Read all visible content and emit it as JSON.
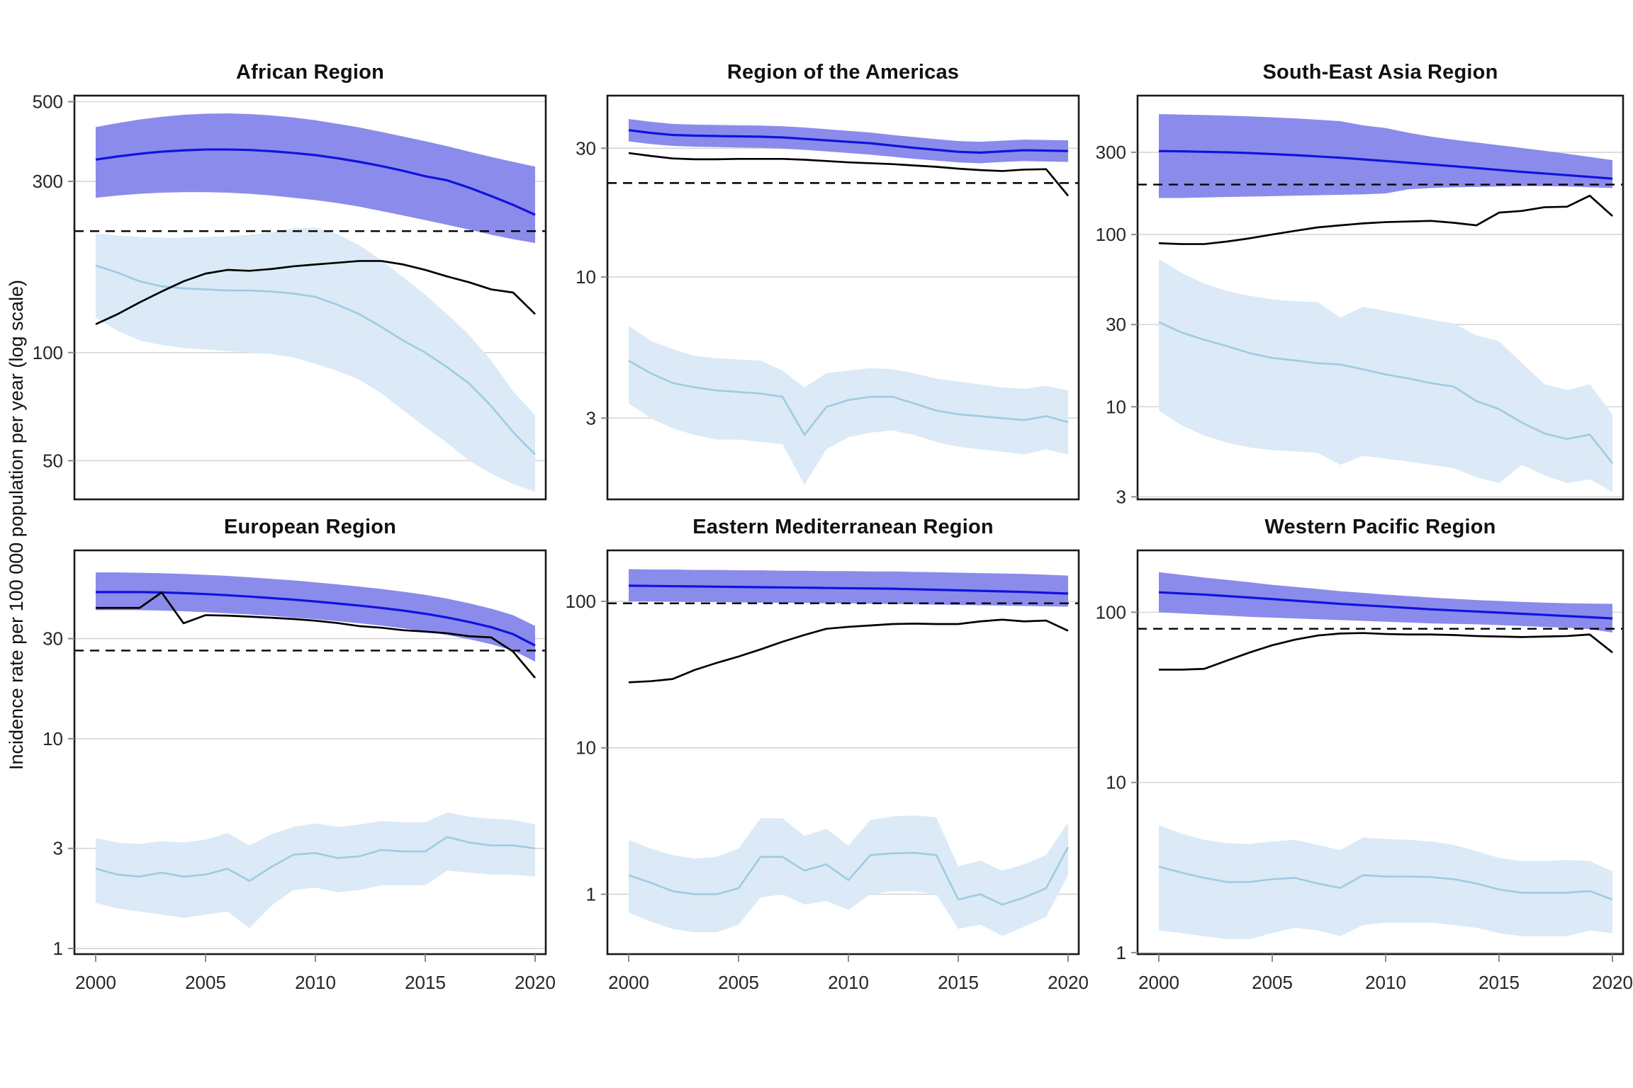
{
  "figure": {
    "ylabel": "Incidence rate per 100 000 population per year (log scale)"
  },
  "colors": {
    "blue_line": "#1212dd",
    "blue_band": "#8b8bec",
    "lightblue_line": "#9fcbe1",
    "lightblue_band": "#dbeaf6",
    "black_line": "#000000",
    "dashed_line": "#000000",
    "grid": "#d6d6d6",
    "frame": "#1a1a1a",
    "tick_text": "#262626",
    "tick_mark": "#8c8c8c"
  },
  "chart_meta": {
    "type": "line",
    "log_scale": true,
    "ylabel": "Incidence rate per 100 000 population per year (log scale)",
    "years": [
      2000,
      2001,
      2002,
      2003,
      2004,
      2005,
      2006,
      2007,
      2008,
      2009,
      2010,
      2011,
      2012,
      2013,
      2014,
      2015,
      2016,
      2017,
      2018,
      2019,
      2020
    ],
    "xticks": [
      2000,
      2005,
      2010,
      2015,
      2020
    ],
    "legend": "none",
    "grid": "horizontal-only",
    "facets": 6
  },
  "chart_data": [
    {
      "title": "African Region",
      "ylim": [
        39,
        520
      ],
      "yticks": [
        500,
        300,
        100,
        50
      ],
      "dashed_y": 218,
      "series": {
        "blue_line": [
          345,
          352,
          358,
          363,
          366,
          368,
          368,
          367,
          364,
          360,
          355,
          348,
          340,
          331,
          321,
          310,
          302,
          288,
          273,
          258,
          242
        ],
        "blue_band_upper": [
          425,
          436,
          446,
          454,
          460,
          463,
          464,
          462,
          458,
          452,
          444,
          434,
          424,
          412,
          400,
          388,
          376,
          363,
          351,
          340,
          330
        ],
        "blue_band_lower": [
          270,
          274,
          277,
          279,
          280,
          280,
          279,
          277,
          274,
          270,
          266,
          261,
          255,
          248,
          241,
          234,
          227,
          220,
          213,
          207,
          202
        ],
        "lightblue_line": [
          175,
          167,
          158,
          153,
          151,
          150,
          149,
          149,
          148,
          146,
          143,
          136,
          128,
          118,
          108,
          100,
          91,
          82,
          71,
          60,
          52
        ],
        "lightblue_band_upper": [
          215,
          212,
          210,
          209,
          209,
          210,
          211,
          213,
          216,
          222,
          223,
          214,
          199,
          181,
          162,
          145,
          128,
          112,
          95,
          78,
          67
        ],
        "lightblue_band_lower": [
          125,
          115,
          108,
          105,
          103,
          102,
          101,
          100,
          99,
          97,
          93,
          89,
          84,
          77,
          69,
          62,
          56,
          50,
          46,
          43,
          41
        ],
        "black_line": [
          120,
          128,
          138,
          148,
          158,
          166,
          170,
          169,
          171,
          174,
          176,
          178,
          180,
          180,
          176,
          170,
          163,
          157,
          150,
          147,
          128
        ]
      }
    },
    {
      "title": "Region of the Americas",
      "ylim": [
        1.5,
        47
      ],
      "yticks": [
        30,
        10,
        3
      ],
      "dashed_y": 22.3,
      "series": {
        "blue_line": [
          35,
          34.2,
          33.6,
          33.4,
          33.3,
          33.2,
          33.1,
          32.9,
          32.5,
          32.1,
          31.7,
          31.3,
          30.7,
          30.1,
          29.6,
          29.1,
          28.9,
          29.2,
          29.5,
          29.4,
          29.3
        ],
        "blue_band_upper": [
          38.5,
          37.6,
          36.9,
          36.7,
          36.6,
          36.5,
          36.4,
          36.2,
          35.8,
          35.3,
          34.8,
          34.3,
          33.6,
          33.0,
          32.4,
          31.9,
          31.7,
          32.0,
          32.3,
          32.2,
          32.1
        ],
        "blue_band_lower": [
          31.8,
          31.1,
          30.6,
          30.4,
          30.3,
          30.2,
          30.1,
          29.9,
          29.6,
          29.2,
          28.8,
          28.4,
          27.9,
          27.4,
          27.0,
          26.6,
          26.4,
          26.7,
          26.9,
          26.8,
          26.7
        ],
        "lightblue_line": [
          4.9,
          4.4,
          4.05,
          3.9,
          3.8,
          3.75,
          3.7,
          3.6,
          2.6,
          3.3,
          3.5,
          3.6,
          3.6,
          3.4,
          3.2,
          3.1,
          3.05,
          3.0,
          2.95,
          3.05,
          2.9
        ],
        "lightblue_band_upper": [
          6.6,
          5.8,
          5.4,
          5.1,
          5.0,
          4.95,
          4.9,
          4.5,
          3.9,
          4.4,
          4.5,
          4.6,
          4.55,
          4.4,
          4.2,
          4.1,
          4.0,
          3.9,
          3.85,
          3.95,
          3.8
        ],
        "lightblue_band_lower": [
          3.4,
          3.0,
          2.75,
          2.6,
          2.5,
          2.5,
          2.45,
          2.4,
          1.7,
          2.3,
          2.55,
          2.65,
          2.7,
          2.6,
          2.45,
          2.35,
          2.3,
          2.25,
          2.2,
          2.3,
          2.2
        ],
        "black_line": [
          28.8,
          28.1,
          27.5,
          27.3,
          27.3,
          27.4,
          27.4,
          27.4,
          27.2,
          26.9,
          26.6,
          26.4,
          26.2,
          25.9,
          25.6,
          25.2,
          24.9,
          24.7,
          25.0,
          25.1,
          20
        ]
      }
    },
    {
      "title": "South-East Asia Region",
      "ylim": [
        2.9,
        640
      ],
      "yticks": [
        300,
        100,
        30,
        10,
        3
      ],
      "dashed_y": 195,
      "series": {
        "blue_line": [
          305,
          304,
          302,
          300,
          297,
          293,
          289,
          284,
          279,
          273,
          267,
          261,
          255,
          249,
          243,
          237,
          231,
          226,
          221,
          216,
          211
        ],
        "blue_band_upper": [
          500,
          497,
          494,
          490,
          485,
          479,
          472,
          464,
          455,
          430,
          415,
          390,
          370,
          355,
          342,
          330,
          318,
          306,
          294,
          282,
          270
        ],
        "blue_band_lower": [
          163,
          163,
          164,
          165,
          166,
          167,
          168,
          169,
          170,
          171,
          173,
          183,
          186,
          188,
          189,
          190,
          191,
          191,
          190,
          188,
          186
        ],
        "lightblue_line": [
          31,
          27,
          24.5,
          22.5,
          20.5,
          19.2,
          18.6,
          17.9,
          17.6,
          16.5,
          15.4,
          14.6,
          13.7,
          13.1,
          10.8,
          9.7,
          8.1,
          7.0,
          6.5,
          6.9,
          4.7
        ],
        "lightblue_band_upper": [
          72,
          60,
          52,
          47,
          44,
          42,
          41,
          40.5,
          33,
          38,
          36,
          34,
          32,
          30.5,
          26,
          24,
          18,
          13.5,
          12.5,
          13.5,
          9
        ],
        "lightblue_band_lower": [
          9.5,
          7.8,
          6.8,
          6.2,
          5.8,
          5.6,
          5.5,
          5.4,
          4.6,
          5.2,
          5.0,
          4.8,
          4.6,
          4.4,
          3.9,
          3.6,
          4.6,
          4.0,
          3.6,
          3.8,
          3.2
        ],
        "black_line": [
          89,
          88,
          88,
          91,
          95,
          100,
          105,
          110,
          113,
          116,
          118,
          119,
          120,
          117,
          113,
          134,
          137,
          144,
          145,
          168,
          128
        ]
      }
    },
    {
      "title": "European Region",
      "ylim": [
        0.94,
        79
      ],
      "yticks": [
        30,
        10,
        3,
        1
      ],
      "dashed_y": 26.3,
      "series": {
        "blue_line": [
          50,
          50,
          50,
          49.8,
          49.4,
          48.9,
          48.3,
          47.6,
          46.8,
          46,
          45.1,
          44.1,
          43.1,
          42,
          40.8,
          39.4,
          37.8,
          36,
          34,
          31.5,
          27.8
        ],
        "blue_band_upper": [
          62,
          62,
          61.8,
          61.5,
          61,
          60.4,
          59.7,
          58.8,
          57.8,
          56.8,
          55.6,
          54.4,
          53.1,
          51.7,
          50.2,
          48.5,
          46.5,
          44.2,
          41.7,
          38.8,
          34.5
        ],
        "blue_band_lower": [
          41,
          41,
          41,
          40.8,
          40.5,
          40.1,
          39.6,
          39.1,
          38.5,
          37.8,
          37.1,
          36.3,
          35.5,
          34.6,
          33.6,
          32.5,
          31.2,
          29.8,
          28.2,
          26.3,
          23.3
        ],
        "lightblue_line": [
          2.4,
          2.25,
          2.2,
          2.3,
          2.2,
          2.25,
          2.4,
          2.1,
          2.45,
          2.8,
          2.85,
          2.7,
          2.75,
          2.95,
          2.9,
          2.9,
          3.4,
          3.2,
          3.1,
          3.1,
          3.0
        ],
        "lightblue_band_upper": [
          3.35,
          3.2,
          3.15,
          3.25,
          3.2,
          3.3,
          3.55,
          3.1,
          3.5,
          3.8,
          3.95,
          3.8,
          3.9,
          4.05,
          4.0,
          4.0,
          4.45,
          4.25,
          4.15,
          4.1,
          3.9
        ],
        "lightblue_band_lower": [
          1.65,
          1.55,
          1.5,
          1.45,
          1.4,
          1.45,
          1.5,
          1.25,
          1.6,
          1.9,
          1.95,
          1.85,
          1.9,
          2.0,
          2.0,
          2.0,
          2.35,
          2.3,
          2.25,
          2.25,
          2.2
        ],
        "black_line": [
          42,
          42,
          42,
          49.8,
          35.5,
          38.8,
          38.6,
          38.2,
          37.7,
          37.2,
          36.5,
          35.6,
          34.4,
          33.8,
          32.9,
          32.4,
          31.8,
          30.8,
          30.4,
          26,
          19.5
        ]
      }
    },
    {
      "title": "Eastern Mediterranean Region",
      "ylim": [
        0.39,
        223
      ],
      "yticks": [
        100,
        10,
        1
      ],
      "dashed_y": 97,
      "series": {
        "blue_line": [
          128,
          127.5,
          127,
          126.5,
          126,
          125.5,
          125,
          124.5,
          124,
          123.5,
          123,
          122.5,
          122,
          121,
          120,
          119,
          118,
          117,
          116,
          114.5,
          113
        ],
        "blue_band_upper": [
          166,
          165,
          165,
          164,
          164,
          163,
          163,
          162,
          162,
          161,
          161,
          160,
          160,
          159,
          158,
          157,
          156,
          155,
          154,
          152,
          150
        ],
        "blue_band_lower": [
          100,
          100,
          99.5,
          99,
          99,
          98.5,
          98,
          98,
          97.5,
          97,
          97,
          96.5,
          96,
          95.5,
          95,
          94.5,
          94,
          93.5,
          93,
          92.5,
          92
        ],
        "lightblue_line": [
          1.35,
          1.2,
          1.05,
          1.0,
          1.0,
          1.1,
          1.8,
          1.8,
          1.45,
          1.6,
          1.25,
          1.85,
          1.9,
          1.92,
          1.85,
          0.92,
          1.0,
          0.85,
          0.95,
          1.1,
          2.1
        ],
        "lightblue_band_upper": [
          2.35,
          2.05,
          1.85,
          1.75,
          1.8,
          2.05,
          3.3,
          3.3,
          2.5,
          2.8,
          2.15,
          3.2,
          3.4,
          3.45,
          3.35,
          1.55,
          1.7,
          1.45,
          1.6,
          1.85,
          3.1
        ],
        "lightblue_band_lower": [
          0.75,
          0.65,
          0.58,
          0.55,
          0.55,
          0.62,
          0.95,
          1.0,
          0.85,
          0.9,
          0.78,
          1.0,
          1.05,
          1.05,
          1.0,
          0.58,
          0.62,
          0.52,
          0.6,
          0.7,
          1.35
        ],
        "black_line": [
          28,
          28.5,
          29.5,
          34,
          38,
          42,
          47,
          53,
          59,
          65,
          67,
          68.5,
          70,
          70.5,
          70,
          70,
          73,
          75,
          73,
          74,
          63
        ]
      }
    },
    {
      "title": "Western Pacific Region",
      "ylim": [
        0.98,
        231
      ],
      "yticks": [
        100,
        10,
        1
      ],
      "dashed_y": 80,
      "series": {
        "blue_line": [
          131,
          129,
          127,
          124.5,
          122,
          119.5,
          117,
          114.5,
          112,
          110,
          108,
          106,
          104,
          102.5,
          101,
          99.5,
          98,
          96.5,
          95,
          93.5,
          92
        ],
        "blue_band_upper": [
          172,
          166,
          160,
          155,
          150,
          145,
          141,
          137,
          133,
          130,
          127,
          124.5,
          122,
          120,
          118,
          116.5,
          115,
          114,
          113,
          112.5,
          112
        ],
        "blue_band_lower": [
          100,
          98.5,
          97,
          95.5,
          94,
          93,
          92,
          91,
          90,
          89,
          88,
          87,
          86,
          85.5,
          85,
          84,
          83,
          82,
          81,
          79.5,
          76
        ],
        "lightblue_line": [
          3.2,
          2.95,
          2.75,
          2.6,
          2.6,
          2.7,
          2.75,
          2.55,
          2.4,
          2.85,
          2.8,
          2.8,
          2.78,
          2.7,
          2.55,
          2.35,
          2.25,
          2.25,
          2.25,
          2.3,
          2.05
        ],
        "lightblue_band_upper": [
          5.6,
          5.0,
          4.6,
          4.4,
          4.35,
          4.5,
          4.6,
          4.3,
          4.0,
          4.75,
          4.65,
          4.6,
          4.5,
          4.3,
          3.95,
          3.6,
          3.45,
          3.45,
          3.5,
          3.45,
          3.0
        ],
        "lightblue_band_lower": [
          1.35,
          1.3,
          1.25,
          1.2,
          1.2,
          1.3,
          1.4,
          1.35,
          1.25,
          1.45,
          1.5,
          1.5,
          1.5,
          1.45,
          1.4,
          1.3,
          1.25,
          1.25,
          1.25,
          1.35,
          1.3
        ],
        "black_line": [
          46,
          46,
          46.5,
          52,
          58,
          64,
          69,
          73,
          75,
          75.5,
          74.5,
          74,
          74,
          73.5,
          72.5,
          72,
          71.5,
          72,
          72.5,
          74,
          58
        ]
      }
    }
  ]
}
